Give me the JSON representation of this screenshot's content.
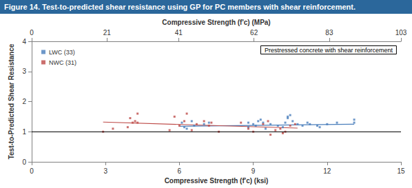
{
  "chart_data": {
    "type": "scatter",
    "title": "Figure 14. Test-to-predicted shear resistance using GP for PC members  with shear reinforcement.",
    "annotation": "Prestressed concrete with shear reinforcement",
    "xlabel": "Compressive Strength (f'c) (ksi)",
    "x2label": "Compressive Strength (f'c) (MPa)",
    "ylabel": "Test-to-Predicted Shear Resistance",
    "xlim": [
      0,
      15
    ],
    "xticks": [
      0,
      3,
      6,
      9,
      12,
      15
    ],
    "x2lim": [
      0,
      103
    ],
    "x2ticks": [
      0,
      21,
      41,
      62,
      83,
      103
    ],
    "ylim": [
      0,
      4
    ],
    "yticks": [
      0,
      1,
      2,
      3,
      4
    ],
    "grid": false,
    "legend": "upper left",
    "hline": 1,
    "series": [
      {
        "name": "LWC (33)",
        "color": "#4a7ebb",
        "marker": "square",
        "x": [
          6.1,
          6.2,
          6.3,
          6.5,
          6.6,
          7.0,
          7.2,
          8.8,
          8.8,
          9.0,
          9.1,
          9.2,
          9.3,
          9.4,
          9.5,
          9.7,
          10.0,
          10.2,
          10.3,
          10.4,
          10.4,
          10.5,
          10.6,
          10.8,
          11.0,
          11.2,
          11.3,
          11.6,
          11.7,
          12.0,
          12.4,
          13.1,
          13.1
        ],
        "values": [
          1.3,
          1.15,
          1.1,
          1.35,
          1.2,
          1.25,
          1.3,
          1.3,
          1.15,
          1.25,
          1.2,
          1.35,
          1.4,
          1.3,
          1.1,
          1.25,
          1.2,
          1.15,
          1.3,
          1.45,
          1.5,
          1.55,
          1.35,
          1.25,
          1.2,
          1.3,
          1.25,
          1.2,
          1.15,
          1.25,
          1.3,
          1.4,
          1.3
        ],
        "trend": {
          "x": [
            6.0,
            13.1
          ],
          "values": [
            1.18,
            1.25
          ]
        }
      },
      {
        "name": "NWC (31)",
        "color": "#be4b48",
        "marker": "square",
        "x": [
          2.9,
          3.3,
          3.9,
          4.0,
          4.1,
          4.2,
          4.3,
          4.3,
          5.6,
          5.8,
          6.0,
          6.2,
          6.3,
          6.5,
          6.7,
          7.0,
          7.2,
          7.3,
          7.6,
          8.5,
          8.8,
          9.0,
          9.4,
          9.6,
          9.7,
          9.9,
          10.1,
          10.2,
          10.3,
          10.5,
          10.7
        ],
        "values": [
          1.0,
          1.1,
          1.15,
          1.45,
          1.3,
          1.35,
          1.6,
          1.3,
          1.05,
          1.5,
          1.2,
          1.35,
          1.6,
          1.05,
          1.25,
          1.35,
          1.2,
          1.3,
          1.0,
          1.3,
          1.1,
          1.0,
          1.25,
          1.35,
          0.9,
          1.05,
          1.1,
          0.95,
          1.0,
          1.2,
          1.25
        ],
        "trend": {
          "x": [
            2.9,
            10.8
          ],
          "values": [
            1.32,
            1.12
          ]
        }
      }
    ]
  }
}
